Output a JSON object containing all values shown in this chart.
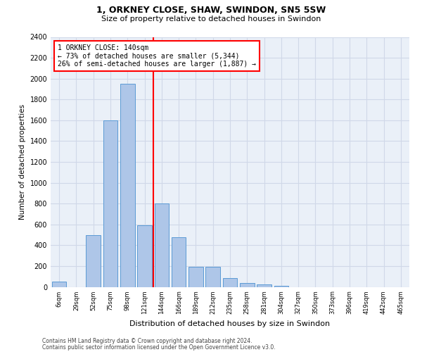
{
  "title1": "1, ORKNEY CLOSE, SHAW, SWINDON, SN5 5SW",
  "title2": "Size of property relative to detached houses in Swindon",
  "xlabel": "Distribution of detached houses by size in Swindon",
  "ylabel": "Number of detached properties",
  "footnote1": "Contains HM Land Registry data © Crown copyright and database right 2024.",
  "footnote2": "Contains public sector information licensed under the Open Government Licence v3.0.",
  "bin_labels": [
    "6sqm",
    "29sqm",
    "52sqm",
    "75sqm",
    "98sqm",
    "121sqm",
    "144sqm",
    "166sqm",
    "189sqm",
    "212sqm",
    "235sqm",
    "258sqm",
    "281sqm",
    "304sqm",
    "327sqm",
    "350sqm",
    "373sqm",
    "396sqm",
    "419sqm",
    "442sqm",
    "465sqm"
  ],
  "bar_values": [
    50,
    0,
    500,
    1600,
    1950,
    590,
    800,
    475,
    195,
    195,
    85,
    35,
    25,
    10,
    0,
    0,
    0,
    0,
    0,
    0,
    0
  ],
  "bar_color": "#aec6e8",
  "bar_edge_color": "#5b9bd5",
  "property_line_label": "1 ORKNEY CLOSE: 140sqm",
  "annotation_line1": "← 73% of detached houses are smaller (5,344)",
  "annotation_line2": "26% of semi-detached houses are larger (1,887) →",
  "vline_color": "red",
  "ylim": [
    0,
    2400
  ],
  "yticks": [
    0,
    200,
    400,
    600,
    800,
    1000,
    1200,
    1400,
    1600,
    1800,
    2000,
    2200,
    2400
  ],
  "grid_color": "#d0d8e8",
  "bg_color": "#eaf0f8",
  "n_bins": 21,
  "property_bin_index": 6,
  "vline_bin_index": 6
}
